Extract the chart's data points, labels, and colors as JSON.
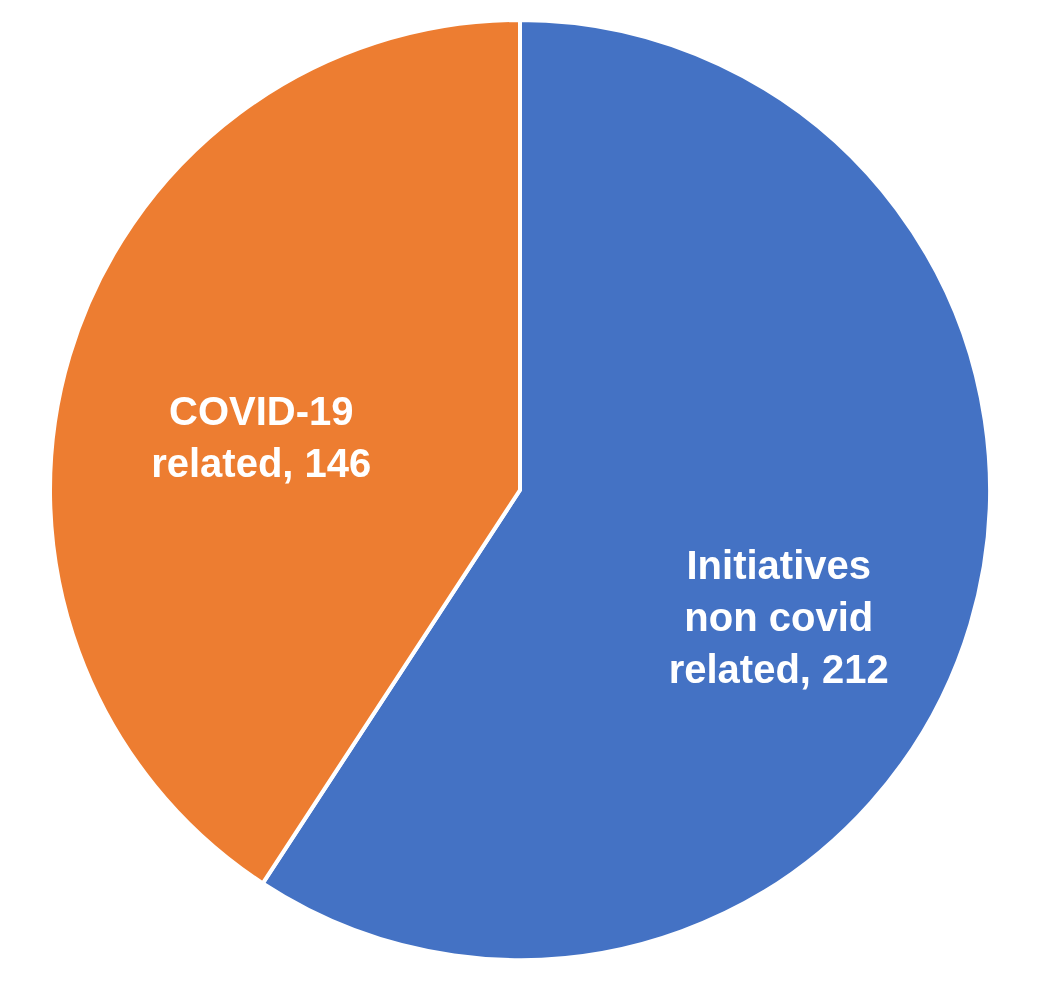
{
  "chart_data": {
    "type": "pie",
    "categories": [
      "Initiatives non covid related, 212",
      "COVID-19 related, 146"
    ],
    "values": [
      212,
      146
    ],
    "colors": [
      "#4472c4",
      "#ed7d31"
    ],
    "legend": false
  }
}
